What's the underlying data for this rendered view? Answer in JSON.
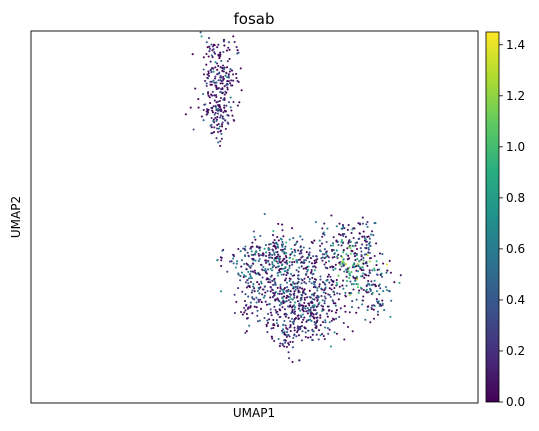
{
  "chart_data": {
    "type": "scatter",
    "title": "fosab",
    "xlabel": "UMAP1",
    "ylabel": "UMAP2",
    "x_ticks_shown": false,
    "y_ticks_shown": false,
    "colormap": "viridis",
    "colorbar": {
      "min": 0.0,
      "max": 1.45,
      "ticks": [
        "0.0",
        "0.2",
        "0.4",
        "0.6",
        "0.8",
        "1.0",
        "1.2",
        "1.4"
      ],
      "tick_values": [
        0.0,
        0.2,
        0.4,
        0.6,
        0.8,
        1.0,
        1.2,
        1.4
      ],
      "placement": "right"
    },
    "clusters": [
      {
        "x": 0.42,
        "y": 0.13,
        "sx": 0.022,
        "sy": 0.075,
        "n": 260,
        "mean": 0.25
      },
      {
        "x": 0.42,
        "y": 0.23,
        "sx": 0.012,
        "sy": 0.025,
        "n": 40,
        "mean": 0.2
      },
      {
        "x": 0.586,
        "y": 0.73,
        "sx": 0.035,
        "sy": 0.038,
        "n": 150,
        "mean": 0.35
      },
      {
        "x": 0.56,
        "y": 0.68,
        "sx": 0.045,
        "sy": 0.05,
        "n": 180,
        "mean": 0.4
      },
      {
        "x": 0.5,
        "y": 0.625,
        "sx": 0.035,
        "sy": 0.03,
        "n": 110,
        "mean": 0.45
      },
      {
        "x": 0.6,
        "y": 0.78,
        "sx": 0.04,
        "sy": 0.025,
        "n": 90,
        "mean": 0.3
      },
      {
        "x": 0.64,
        "y": 0.76,
        "sx": 0.03,
        "sy": 0.04,
        "n": 80,
        "mean": 0.3
      },
      {
        "x": 0.49,
        "y": 0.72,
        "sx": 0.02,
        "sy": 0.04,
        "n": 40,
        "mean": 0.3
      },
      {
        "x": 0.53,
        "y": 0.6,
        "sx": 0.02,
        "sy": 0.02,
        "n": 40,
        "mean": 0.4
      },
      {
        "x": 0.58,
        "y": 0.835,
        "sx": 0.015,
        "sy": 0.02,
        "n": 30,
        "mean": 0.2
      },
      {
        "x": 0.565,
        "y": 0.6,
        "sx": 0.03,
        "sy": 0.03,
        "n": 90,
        "mean": 0.55
      },
      {
        "x": 0.63,
        "y": 0.62,
        "sx": 0.03,
        "sy": 0.02,
        "n": 70,
        "mean": 0.35
      },
      {
        "x": 0.64,
        "y": 0.7,
        "sx": 0.05,
        "sy": 0.05,
        "n": 100,
        "mean": 0.3
      },
      {
        "x": 0.73,
        "y": 0.64,
        "sx": 0.028,
        "sy": 0.03,
        "n": 100,
        "mean": 0.95
      },
      {
        "x": 0.75,
        "y": 0.68,
        "sx": 0.03,
        "sy": 0.04,
        "n": 100,
        "mean": 0.55
      },
      {
        "x": 0.69,
        "y": 0.56,
        "sx": 0.025,
        "sy": 0.025,
        "n": 60,
        "mean": 0.45
      },
      {
        "x": 0.74,
        "y": 0.58,
        "sx": 0.02,
        "sy": 0.02,
        "n": 40,
        "mean": 0.4
      },
      {
        "x": 0.77,
        "y": 0.74,
        "sx": 0.015,
        "sy": 0.015,
        "n": 20,
        "mean": 0.4
      },
      {
        "x": 0.75,
        "y": 0.54,
        "sx": 0.012,
        "sy": 0.02,
        "n": 20,
        "mean": 0.3
      }
    ]
  }
}
